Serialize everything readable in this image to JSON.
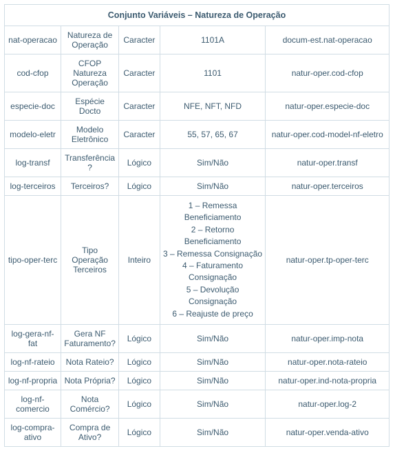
{
  "title": "Conjunto Variáveis – Natureza de Operação",
  "rows": [
    {
      "c1": "nat-operacao",
      "c2": "Natureza de Operação",
      "c3": "Caracter",
      "c4": "1101A",
      "c5": "docum-est.nat-operacao"
    },
    {
      "c1": "cod-cfop",
      "c2": "CFOP Natureza Operação",
      "c3": "Caracter",
      "c4": "1101",
      "c5": "natur-oper.cod-cfop"
    },
    {
      "c1": "especie-doc",
      "c2": "Espécie Docto",
      "c3": "Caracter",
      "c4": "NFE, NFT, NFD",
      "c5": "natur-oper.especie-doc"
    },
    {
      "c1": "modelo-eletr",
      "c2": "Modelo Eletrônico",
      "c3": "Caracter",
      "c4": "55, 57, 65, 67",
      "c5": "natur-oper.cod-model-nf-eletro"
    },
    {
      "c1": "log-transf",
      "c2": "Transferência?",
      "c3": "Lógico",
      "c4": "Sim/Não",
      "c5": "natur-oper.transf"
    },
    {
      "c1": "log-terceiros",
      "c2": "Terceiros?",
      "c3": "Lógico",
      "c4": "Sim/Não",
      "c5": "natur-oper.terceiros"
    },
    {
      "c1": "tipo-oper-terc",
      "c2": "Tipo Operação Terceiros",
      "c3": "Inteiro",
      "c4": "1 – Remessa Beneficiamento\n2 – Retorno Beneficiamento\n3 – Remessa Consignação\n4 – Faturamento Consignação\n5 – Devolução Consignação\n6 – Reajuste de preço",
      "c5": "natur-oper.tp-oper-terc"
    },
    {
      "c1": "log-gera-nf-fat",
      "c2": "Gera NF Faturamento?",
      "c3": "Lógico",
      "c4": "Sim/Não",
      "c5": "natur-oper.imp-nota"
    },
    {
      "c1": "log-nf-rateio",
      "c2": "Nota Rateio?",
      "c3": "Lógico",
      "c4": "Sim/Não",
      "c5": "natur-oper.nota-rateio"
    },
    {
      "c1": "log-nf-propria",
      "c2": "Nota Própria?",
      "c3": "Lógico",
      "c4": "Sim/Não",
      "c5": "natur-oper.ind-nota-propria"
    },
    {
      "c1": "log-nf-comercio",
      "c2": "Nota Comércio?",
      "c3": "Lógico",
      "c4": "Sim/Não",
      "c5": "natur-oper.log-2"
    },
    {
      "c1": "log-compra-ativo",
      "c2": "Compra de Ativo?",
      "c3": "Lógico",
      "c4": "Sim/Não",
      "c5": "natur-oper.venda-ativo"
    }
  ]
}
